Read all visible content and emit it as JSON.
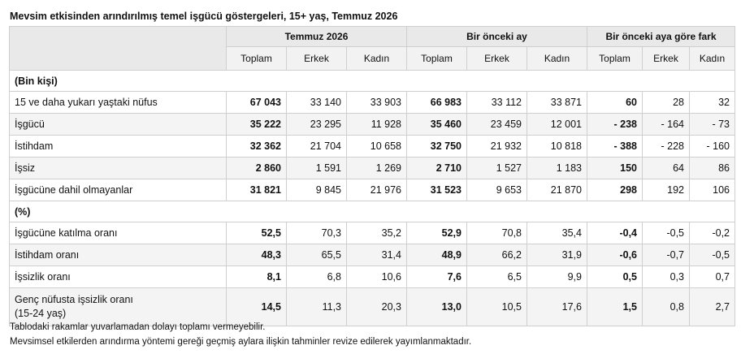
{
  "title": "Mevsim etkisinden arındırılmış temel işgücü göstergeleri, 15+ yaş, Temmuz 2026",
  "groups": [
    "Temmuz 2026",
    "Bir önceki ay",
    "Bir önceki aya göre fark"
  ],
  "subheaders": [
    "Toplam",
    "Erkek",
    "Kadın",
    "Toplam",
    "Erkek",
    "Kadın",
    "Toplam",
    "Erkek",
    "Kadın"
  ],
  "sections": {
    "thousands": "(Bin kişi)",
    "percent": "(%)"
  },
  "rows_thousands": [
    {
      "label": "15 ve daha yukarı yaştaki nüfus",
      "values": [
        "67 043",
        "33 140",
        "33 903",
        "66 983",
        "33 112",
        "33 871",
        "60",
        "28",
        "32"
      ]
    },
    {
      "label": "İşgücü",
      "values": [
        "35 222",
        "23 295",
        "11 928",
        "35 460",
        "23 459",
        "12 001",
        "- 238",
        "- 164",
        "- 73"
      ]
    },
    {
      "label": "İstihdam",
      "values": [
        "32 362",
        "21 704",
        "10 658",
        "32 750",
        "21 932",
        "10 818",
        "- 388",
        "- 228",
        "- 160"
      ]
    },
    {
      "label": "İşsiz",
      "values": [
        "2 860",
        "1 591",
        "1 269",
        "2 710",
        "1 527",
        "1 183",
        "150",
        "64",
        "86"
      ]
    },
    {
      "label": "İşgücüne dahil olmayanlar",
      "values": [
        "31 821",
        "9 845",
        "21 976",
        "31 523",
        "9 653",
        "21 870",
        "298",
        "192",
        "106"
      ]
    }
  ],
  "rows_percent": [
    {
      "label": "İşgücüne katılma oranı",
      "values": [
        "52,5",
        "70,3",
        "35,2",
        "52,9",
        "70,8",
        "35,4",
        "-0,4",
        "-0,5",
        "-0,2"
      ]
    },
    {
      "label": "İstihdam oranı",
      "values": [
        "48,3",
        "65,5",
        "31,4",
        "48,9",
        "66,2",
        "31,9",
        "-0,6",
        "-0,7",
        "-0,5"
      ]
    },
    {
      "label": "İşsizlik oranı",
      "values": [
        "8,1",
        "6,8",
        "10,6",
        "7,6",
        "6,5",
        "9,9",
        "0,5",
        "0,3",
        "0,7"
      ]
    },
    {
      "label": "Genç nüfusta işsizlik oranı",
      "label2": "(15-24 yaş)",
      "values": [
        "14,5",
        "11,3",
        "20,3",
        "13,0",
        "10,5",
        "17,6",
        "1,5",
        "0,8",
        "2,7"
      ]
    }
  ],
  "footnotes": [
    "Tablodaki rakamlar yuvarlamadan dolayı toplamı vermeyebilir.",
    "Mevsimsel etkilerden arındırma yöntemi gereği geçmiş aylara ilişkin tahminler revize edilerek yayımlanmaktadır."
  ]
}
